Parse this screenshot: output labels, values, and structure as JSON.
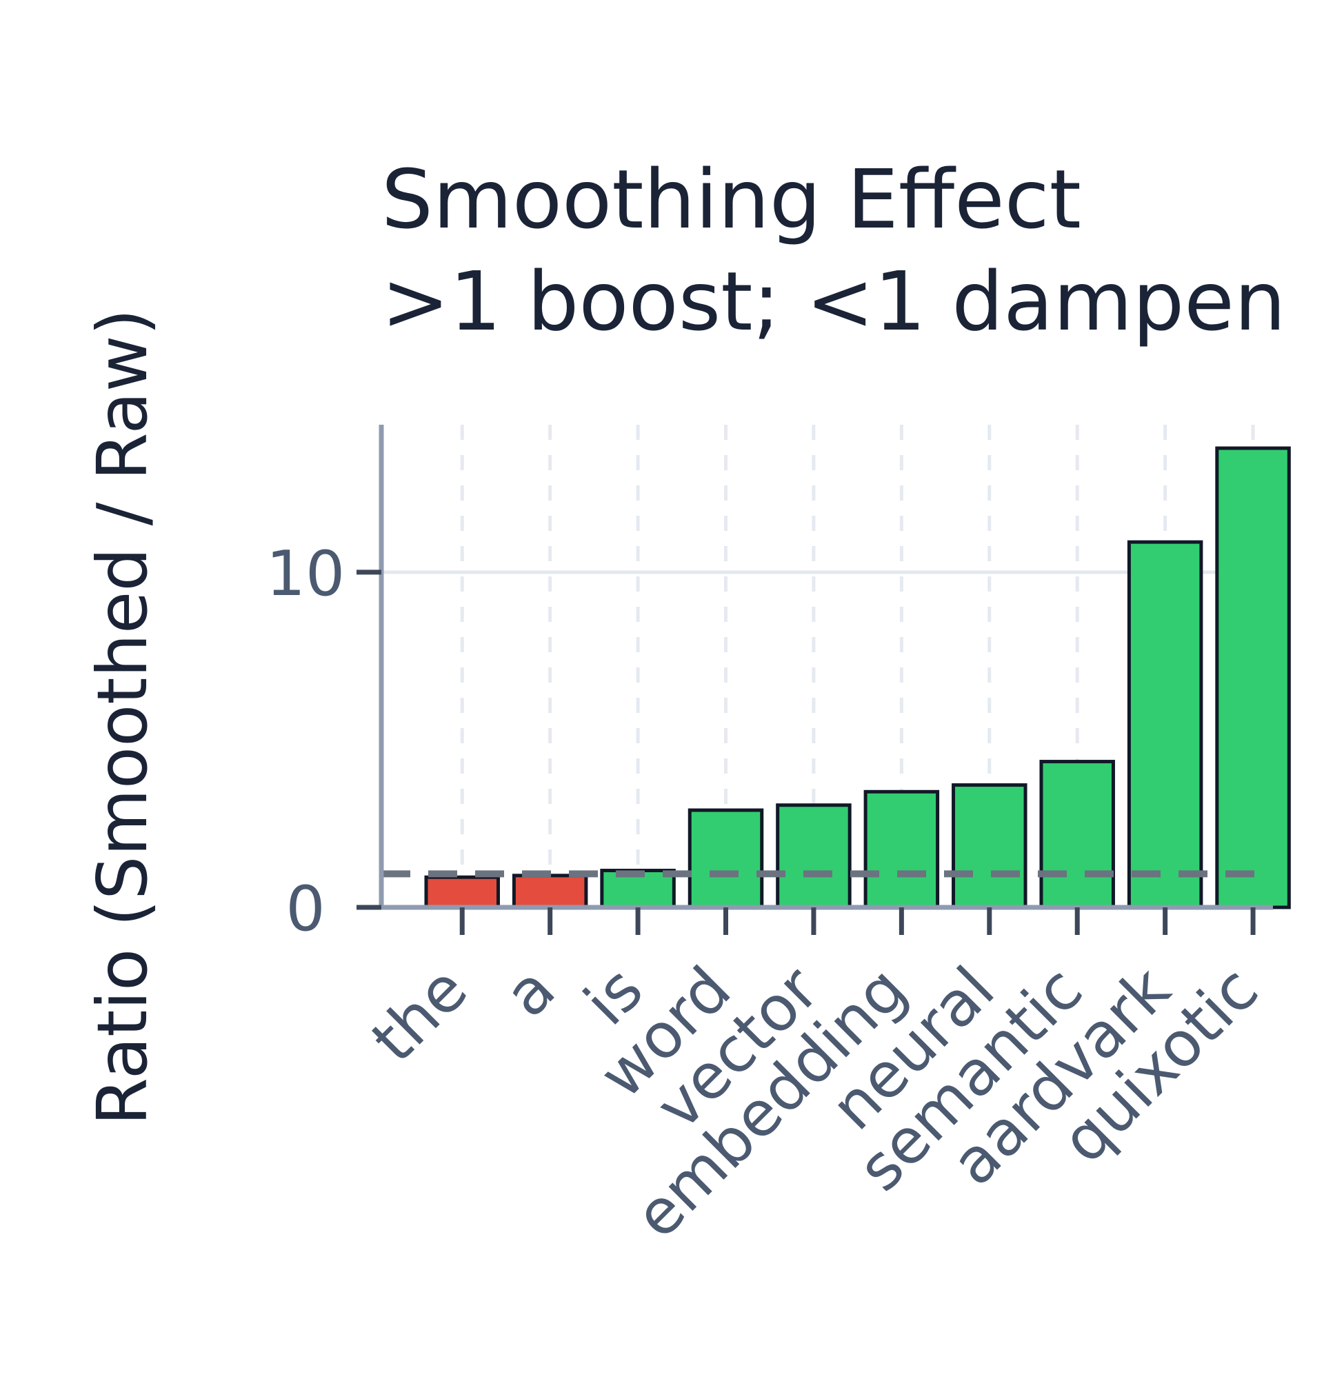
{
  "chart_data": {
    "type": "bar",
    "title": "Smoothing Effect",
    "subtitle": ">1 boost; <1 dampen",
    "xlabel": "",
    "ylabel": "Ratio (Smoothed / Raw)",
    "categories": [
      "the",
      "a",
      "is",
      "word",
      "vector",
      "embedding",
      "neural",
      "semantic",
      "aardvark",
      "quixotic"
    ],
    "values": [
      0.9,
      0.95,
      1.1,
      2.9,
      3.05,
      3.45,
      3.65,
      4.35,
      10.9,
      13.7
    ],
    "ylim": [
      0,
      14.4
    ],
    "yticks": [
      0,
      10
    ],
    "reference_line": {
      "y": 1
    },
    "colors": {
      "above_one": "#32cd70",
      "below_one": "#e44c3d"
    },
    "grid": {
      "y": true,
      "x": true,
      "x_style": "dashed"
    },
    "legend": "none"
  }
}
